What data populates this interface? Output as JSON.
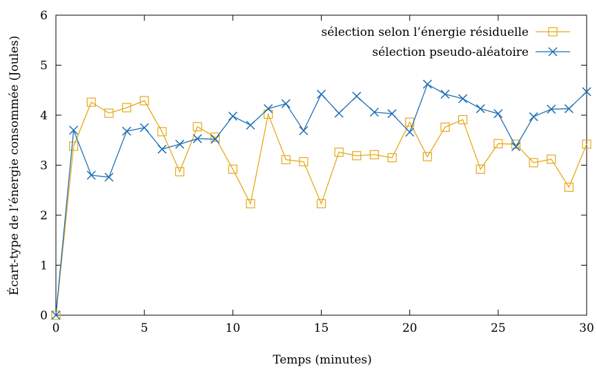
{
  "chart_data": {
    "type": "line",
    "title": "",
    "xlabel": "Temps (minutes)",
    "ylabel": "Écart-type de l’énergie consommée (Joules)",
    "xlim": [
      0,
      30
    ],
    "ylim": [
      0,
      6
    ],
    "xticks": [
      0,
      5,
      10,
      15,
      20,
      25,
      30
    ],
    "yticks": [
      0,
      1,
      2,
      3,
      4,
      5,
      6
    ],
    "grid": false,
    "legend": "top-right",
    "x": [
      0,
      1,
      2,
      3,
      4,
      5,
      6,
      7,
      8,
      9,
      10,
      11,
      12,
      13,
      14,
      15,
      16,
      17,
      18,
      19,
      20,
      21,
      22,
      23,
      24,
      25,
      26,
      27,
      28,
      29,
      30
    ],
    "series": [
      {
        "name": "sélection selon l’énergie résiduelle",
        "color": "#e6a817",
        "marker": "square",
        "values": [
          0,
          3.38,
          4.26,
          4.04,
          4.15,
          4.29,
          3.67,
          2.87,
          3.77,
          3.56,
          2.92,
          2.23,
          4.02,
          3.11,
          3.07,
          2.23,
          3.26,
          3.19,
          3.21,
          3.15,
          3.86,
          3.17,
          3.76,
          3.91,
          2.92,
          3.43,
          3.42,
          3.05,
          3.12,
          2.56,
          3.42
        ]
      },
      {
        "name": "sélection pseudo-aléatoire",
        "color": "#1f6eb4",
        "marker": "x",
        "values": [
          0,
          3.7,
          2.8,
          2.76,
          3.68,
          3.75,
          3.32,
          3.42,
          3.53,
          3.52,
          3.98,
          3.8,
          4.13,
          4.23,
          3.69,
          4.42,
          4.04,
          4.38,
          4.06,
          4.03,
          3.66,
          4.62,
          4.42,
          4.33,
          4.13,
          4.03,
          3.37,
          3.97,
          4.12,
          4.13,
          4.47
        ]
      }
    ]
  }
}
